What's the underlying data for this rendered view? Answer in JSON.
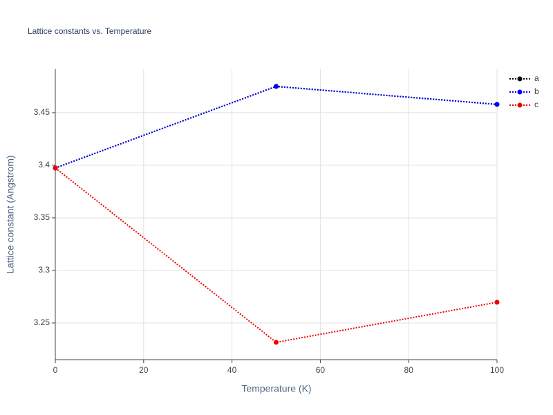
{
  "chart_data": {
    "type": "line",
    "title": "Lattice constants vs. Temperature",
    "x_label": "Temperature (K)",
    "y_label": "Lattice constant (Angstrom)",
    "x": [
      0,
      50,
      100
    ],
    "series": [
      {
        "name": "a",
        "color": "#000000",
        "values": [
          3.3974,
          3.475,
          3.4579
        ]
      },
      {
        "name": "b",
        "color": "#0000ee",
        "values": [
          3.3974,
          3.475,
          3.4579
        ]
      },
      {
        "name": "c",
        "color": "#ee0000",
        "values": [
          3.3974,
          3.2316,
          3.2697
        ]
      }
    ],
    "xlim": [
      0,
      100
    ],
    "xticks": [
      0,
      20,
      40,
      60,
      80,
      100
    ],
    "ylim": [
      3.2151,
      3.4914
    ],
    "yticks": [
      3.25,
      3.3,
      3.35,
      3.4,
      3.45
    ],
    "grid": true,
    "legend": "right"
  }
}
